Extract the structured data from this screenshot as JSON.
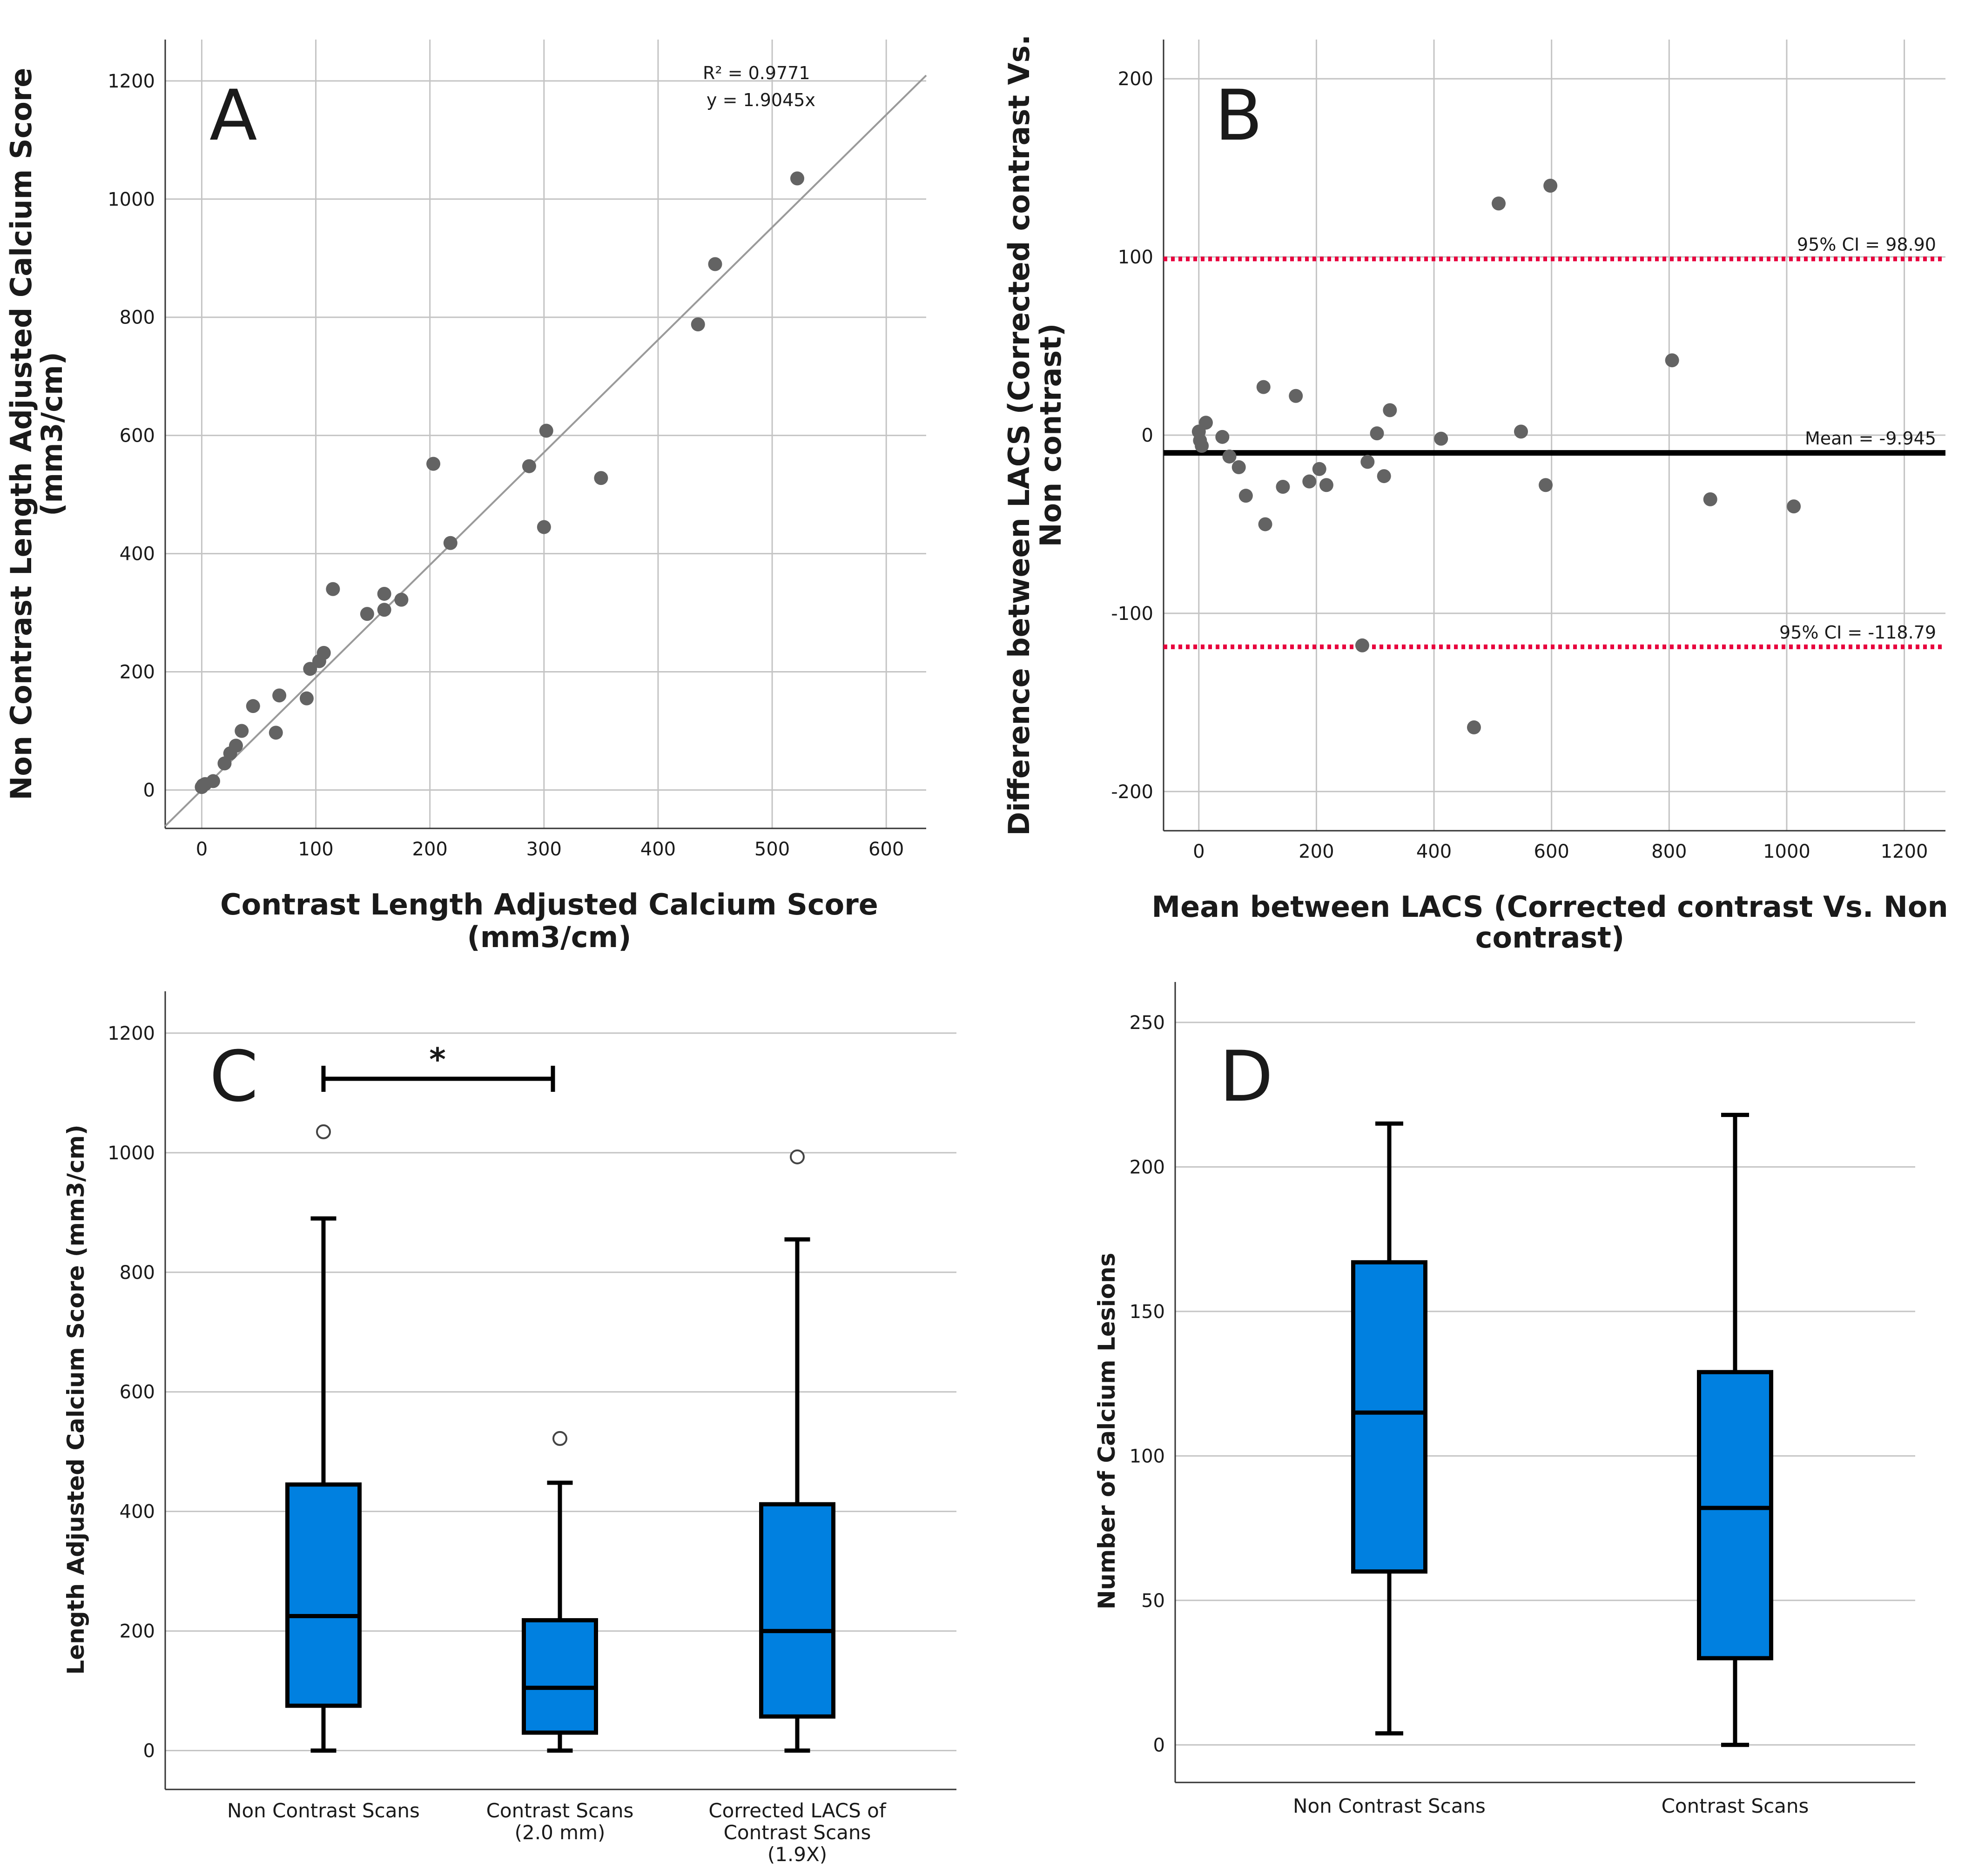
{
  "chart_data": [
    {
      "panel": "A",
      "type": "scatter",
      "xlabel": "Contrast Length Adjusted Calcium Score (mm3/cm)",
      "ylabel": "Non Contrast Length Adjusted Calcium Score (mm3/cm)",
      "xlim": [
        -32,
        635
      ],
      "ylim": [
        -65,
        1270
      ],
      "xticks": [
        0,
        100,
        200,
        300,
        400,
        500,
        600
      ],
      "yticks": [
        0,
        200,
        400,
        600,
        800,
        1000,
        1200
      ],
      "grid": true,
      "annotation_r2": "R² = 0.9771",
      "annotation_eq": "y = 1.9045x",
      "fit": {
        "slope": 1.9045
      },
      "points": [
        [
          0,
          5
        ],
        [
          1,
          8
        ],
        [
          3,
          10
        ],
        [
          10,
          15
        ],
        [
          20,
          45
        ],
        [
          25,
          62
        ],
        [
          30,
          75
        ],
        [
          35,
          100
        ],
        [
          45,
          142
        ],
        [
          65,
          97
        ],
        [
          68,
          160
        ],
        [
          92,
          155
        ],
        [
          95,
          205
        ],
        [
          103,
          218
        ],
        [
          107,
          232
        ],
        [
          115,
          340
        ],
        [
          145,
          298
        ],
        [
          160,
          305
        ],
        [
          160,
          332
        ],
        [
          175,
          322
        ],
        [
          203,
          552
        ],
        [
          218,
          418
        ],
        [
          287,
          548
        ],
        [
          300,
          445
        ],
        [
          302,
          608
        ],
        [
          350,
          528
        ],
        [
          435,
          788
        ],
        [
          450,
          890
        ],
        [
          522,
          1035
        ]
      ]
    },
    {
      "panel": "B",
      "type": "scatter",
      "xlabel": "Mean between LACS (Corrected contrast Vs. Non contrast)",
      "ylabel": "Difference between LACS (Corrected contrast Vs. Non contrast)",
      "xlim": [
        -60,
        1270
      ],
      "ylim": [
        -222,
        222
      ],
      "xticks": [
        0,
        200,
        400,
        600,
        800,
        1000,
        1200
      ],
      "yticks": [
        -200,
        -100,
        0,
        100,
        200
      ],
      "grid": true,
      "mean_line": {
        "value": -9.945,
        "label": "Mean = -9.945"
      },
      "ci_upper": {
        "value": 98.9,
        "label": "95% CI = 98.90"
      },
      "ci_lower": {
        "value": -118.79,
        "label": "95% CI = -118.79"
      },
      "points": [
        [
          0,
          2
        ],
        [
          2,
          -3
        ],
        [
          5,
          -6
        ],
        [
          12,
          7
        ],
        [
          40,
          -1
        ],
        [
          52,
          -12
        ],
        [
          68,
          -18
        ],
        [
          80,
          -34
        ],
        [
          110,
          27
        ],
        [
          113,
          -50
        ],
        [
          143,
          -29
        ],
        [
          165,
          22
        ],
        [
          188,
          -26
        ],
        [
          205,
          -19
        ],
        [
          217,
          -28
        ],
        [
          278,
          -118
        ],
        [
          287,
          -15
        ],
        [
          303,
          1
        ],
        [
          315,
          -23
        ],
        [
          325,
          14
        ],
        [
          412,
          -2
        ],
        [
          468,
          -164
        ],
        [
          510,
          130
        ],
        [
          548,
          2
        ],
        [
          590,
          -28
        ],
        [
          598,
          140
        ],
        [
          805,
          42
        ],
        [
          870,
          -36
        ],
        [
          1012,
          -40
        ]
      ]
    },
    {
      "panel": "C",
      "type": "box",
      "ylabel": "Length Adjusted Calcium Score (mm3/cm)",
      "ylim": [
        -65,
        1270
      ],
      "yticks": [
        0,
        200,
        400,
        600,
        800,
        1000,
        1200
      ],
      "grid": true,
      "significance": "*",
      "categories": [
        "Non Contrast Scans",
        "Contrast Scans (2.0 mm)",
        "Corrected LACS of Contrast Scans (1.9X)"
      ],
      "category_lines": [
        [
          "Non Contrast Scans"
        ],
        [
          "Contrast Scans",
          "(2.0 mm)"
        ],
        [
          "Corrected LACS of",
          "Contrast Scans",
          "(1.9X)"
        ]
      ],
      "boxes": [
        {
          "min": 0,
          "q1": 75,
          "median": 225,
          "q3": 445,
          "max": 890,
          "outliers": [
            1035
          ]
        },
        {
          "min": 0,
          "q1": 30,
          "median": 105,
          "q3": 218,
          "max": 448,
          "outliers": [
            522
          ]
        },
        {
          "min": 0,
          "q1": 57,
          "median": 200,
          "q3": 412,
          "max": 855,
          "outliers": [
            993
          ]
        }
      ]
    },
    {
      "panel": "D",
      "type": "box",
      "ylabel": "Number of Calcium Lesions",
      "ylim": [
        -13,
        264
      ],
      "yticks": [
        0,
        50,
        100,
        150,
        200,
        250
      ],
      "grid": true,
      "categories": [
        "Non Contrast Scans",
        "Contrast Scans"
      ],
      "category_lines": [
        [
          "Non Contrast Scans"
        ],
        [
          "Contrast Scans"
        ]
      ],
      "boxes": [
        {
          "min": 4,
          "q1": 60,
          "median": 115,
          "q3": 167,
          "max": 215,
          "outliers": []
        },
        {
          "min": 0,
          "q1": 30,
          "median": 82,
          "q3": 129,
          "max": 218,
          "outliers": []
        }
      ]
    }
  ],
  "panels": {
    "A": {
      "letter": "A",
      "xlabel_lines": [
        "Contrast Length Adjusted Calcium Score",
        "(mm3/cm)"
      ],
      "ylabel_lines": [
        "Non Contrast Length Adjusted Calcium Score",
        "(mm3/cm)"
      ]
    },
    "B": {
      "letter": "B",
      "xlabel_lines": [
        "Mean between LACS (Corrected contrast Vs. Non",
        "contrast)"
      ],
      "ylabel_lines": [
        "Difference between LACS (Corrected contrast Vs.",
        "Non contrast)"
      ]
    },
    "C": {
      "letter": "C",
      "ylabel_lines": [
        "Length Adjusted Calcium Score (mm3/cm)"
      ]
    },
    "D": {
      "letter": "D",
      "ylabel_lines": [
        "Number of Calcium Lesions"
      ]
    }
  },
  "colors": {
    "box_fill": "#0080e0",
    "ci_line": "#e8003d",
    "point": "#636363",
    "grid": "#c4c4c4"
  }
}
